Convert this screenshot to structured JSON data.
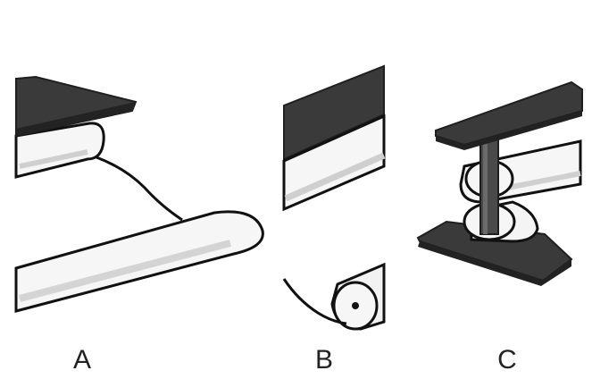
{
  "figure": {
    "panels": [
      {
        "id": "A",
        "label": "A"
      },
      {
        "id": "B",
        "label": "B"
      },
      {
        "id": "C",
        "label": "C"
      }
    ]
  },
  "colors": {
    "plate": "#3a3a3a",
    "plate_edge": "#1f1f1f",
    "roller_fill": "#f6f6f6",
    "roller_shade": "#d4d4d4",
    "outline": "#111111",
    "background": "#ffffff"
  }
}
